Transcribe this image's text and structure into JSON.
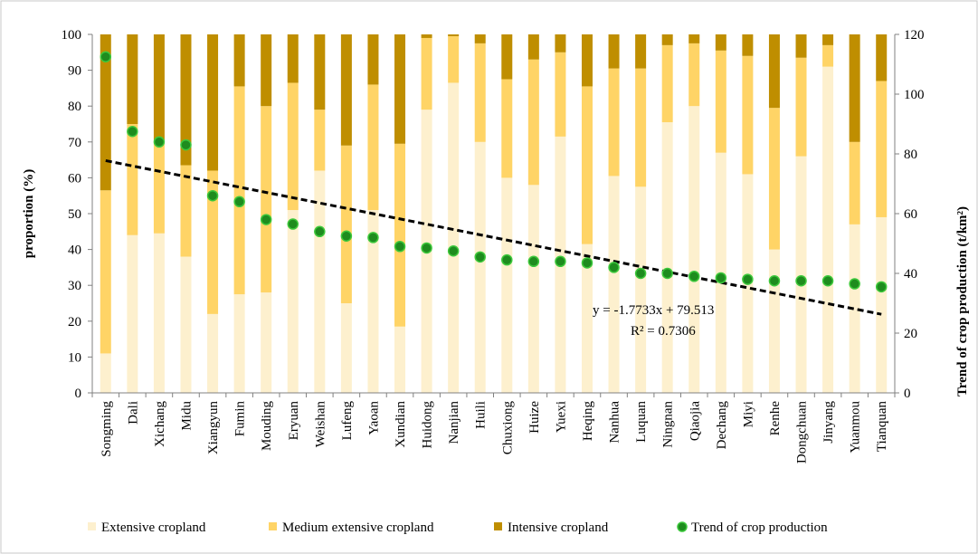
{
  "chart_data": {
    "type": "bar",
    "stacked": true,
    "categories": [
      "Songming",
      "Dali",
      "Xichang",
      "Midu",
      "Xiangyun",
      "Fumin",
      "Mouding",
      "Eryuan",
      "Weishan",
      "Lufeng",
      "Yaoan",
      "Xundian",
      "Huidong",
      "Nanjian",
      "Huili",
      "Chuxiong",
      "Huize",
      "Yuexi",
      "Heqing",
      "Nanhua",
      "Luquan",
      "Ningnan",
      "Qiaojia",
      "Dechang",
      "Miyi",
      "Renhe",
      "Dongchuan",
      "Jinyang",
      "Yuanmou",
      "Tianquan"
    ],
    "series": [
      {
        "name": "Extensive cropland",
        "color": "#FDF0CE",
        "values": [
          11,
          44,
          44.5,
          38,
          22,
          27.5,
          28,
          51,
          62,
          25,
          51,
          18.5,
          79,
          86.5,
          70,
          60,
          58,
          71.5,
          41.5,
          60.5,
          57.5,
          75.5,
          80,
          67,
          61,
          40,
          66,
          91,
          47,
          49
        ]
      },
      {
        "name": "Medium extensive cropland",
        "color": "#FFD466",
        "values": [
          45.5,
          31,
          26,
          25.5,
          40,
          58,
          52,
          35.5,
          17,
          44,
          35,
          51,
          20,
          13,
          27.5,
          27.5,
          35,
          23.5,
          44,
          30,
          33,
          21.5,
          17.5,
          28.5,
          33,
          39.5,
          27.5,
          6,
          23,
          38
        ]
      },
      {
        "name": "Intensive cropland",
        "color": "#BF8E00",
        "values": [
          43.5,
          25,
          29.5,
          36.5,
          38,
          14.5,
          20,
          13.5,
          21,
          31,
          14,
          30.5,
          1,
          0.5,
          2.5,
          12.5,
          7,
          5,
          14.5,
          9.5,
          9.5,
          3,
          2.5,
          4.5,
          6,
          20.5,
          6.5,
          3,
          30,
          13
        ]
      },
      {
        "name": "Trend of crop production",
        "type": "scatter",
        "axis": "right",
        "color": "#2EAA2E",
        "edge_color": "#00A000",
        "fill": "#1E8C1E",
        "values": [
          112.5,
          87.5,
          84,
          83,
          66,
          64,
          58,
          56.5,
          54,
          52.5,
          52,
          49,
          48.5,
          47.5,
          45.5,
          44.5,
          44,
          44,
          43.5,
          42,
          40,
          40,
          39,
          38.5,
          38,
          37.5,
          37.5,
          37.5,
          36.5,
          35.5
        ]
      }
    ],
    "trendline": {
      "slope": -1.7733,
      "intercept": 79.513,
      "axis": "right",
      "equation": "y = -1.7733x + 79.513",
      "r2": "R² = 0.7306",
      "style": "dashed"
    },
    "left_axis": {
      "label": "proportion  (%)",
      "min": 0,
      "max": 100,
      "ticks": [
        "0",
        "10",
        "20",
        "30",
        "40",
        "50",
        "60",
        "70",
        "80",
        "90",
        "100"
      ]
    },
    "right_axis": {
      "label": "Trend of crop production  (t/km²)",
      "min": 0,
      "max": 120,
      "ticks": [
        "0",
        "20",
        "40",
        "60",
        "80",
        "100",
        "120"
      ]
    },
    "legend": {
      "placement": "bottom"
    }
  }
}
